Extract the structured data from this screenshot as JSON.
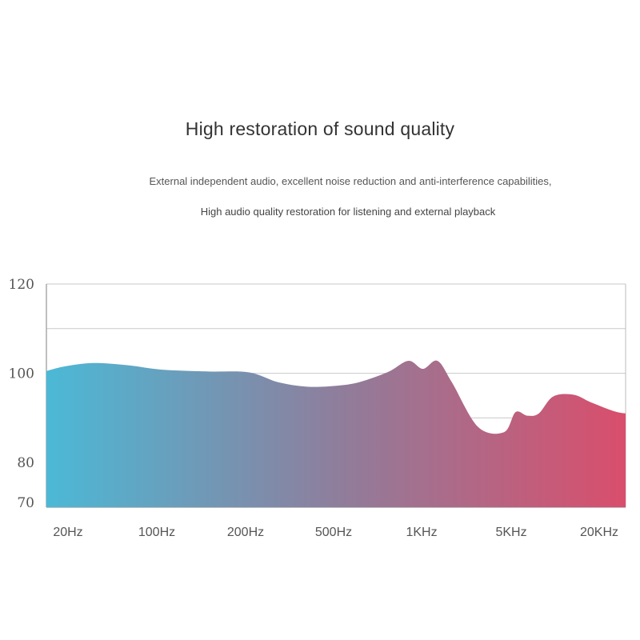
{
  "header": {
    "title": "High restoration of sound quality",
    "subtitle_line1": "External independent audio, excellent noise reduction and anti-interference capabilities,",
    "subtitle_line2": "High audio quality restoration for listening and external playback"
  },
  "chart_data": {
    "type": "area",
    "title": "",
    "xlabel": "",
    "ylabel": "",
    "ylim": [
      70,
      120
    ],
    "y_ticks": [
      120,
      100,
      80,
      70
    ],
    "x_tick_labels": [
      "20Hz",
      "100Hz",
      "200Hz",
      "500Hz",
      "1KHz",
      "5KHz",
      "20KHz"
    ],
    "grid": true,
    "gradient_colors": [
      "#4bb9d6",
      "#8e7e9c",
      "#d94e6c"
    ],
    "series": [
      {
        "x": [
          0,
          0.03,
          0.08,
          0.14,
          0.2,
          0.28,
          0.35,
          0.4,
          0.45,
          0.5,
          0.54,
          0.59,
          0.625,
          0.65,
          0.675,
          0.7,
          0.745,
          0.79,
          0.81,
          0.83,
          0.85,
          0.875,
          0.91,
          0.94,
          0.98,
          1.0
        ],
        "y": [
          100.5,
          101.5,
          102.3,
          101.8,
          100.8,
          100.4,
          100.2,
          98.0,
          97.0,
          97.2,
          98.0,
          100.3,
          102.8,
          101.0,
          102.8,
          98.0,
          88.0,
          86.8,
          91.3,
          90.5,
          91.0,
          94.8,
          95.2,
          93.5,
          91.5,
          91.0
        ]
      }
    ]
  }
}
